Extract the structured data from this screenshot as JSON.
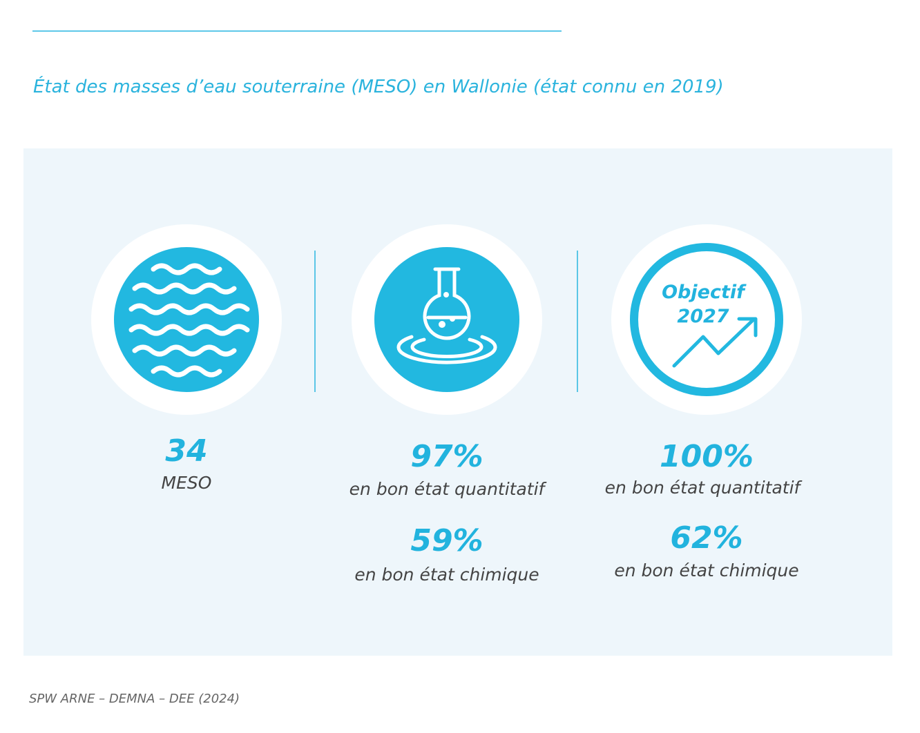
{
  "header": {
    "title": "État des masses d’eau souterraine (MESO) en Wallonie (état connu en 2019)"
  },
  "columns": [
    {
      "stats": [
        {
          "value": "34",
          "label": "MESO"
        }
      ]
    },
    {
      "stats": [
        {
          "value": "97%",
          "label": "en bon état quantitatif"
        },
        {
          "value": "59%",
          "label": "en bon état chimique"
        }
      ]
    },
    {
      "icon_text": [
        "Objectif",
        "2027"
      ],
      "stats": [
        {
          "value": "100%",
          "label": "en bon état quantitatif"
        },
        {
          "value": "62%",
          "label": "en bon état chimique"
        }
      ]
    }
  ],
  "footer": {
    "source": "SPW ARNE – DEMNA – DEE (2024)"
  }
}
